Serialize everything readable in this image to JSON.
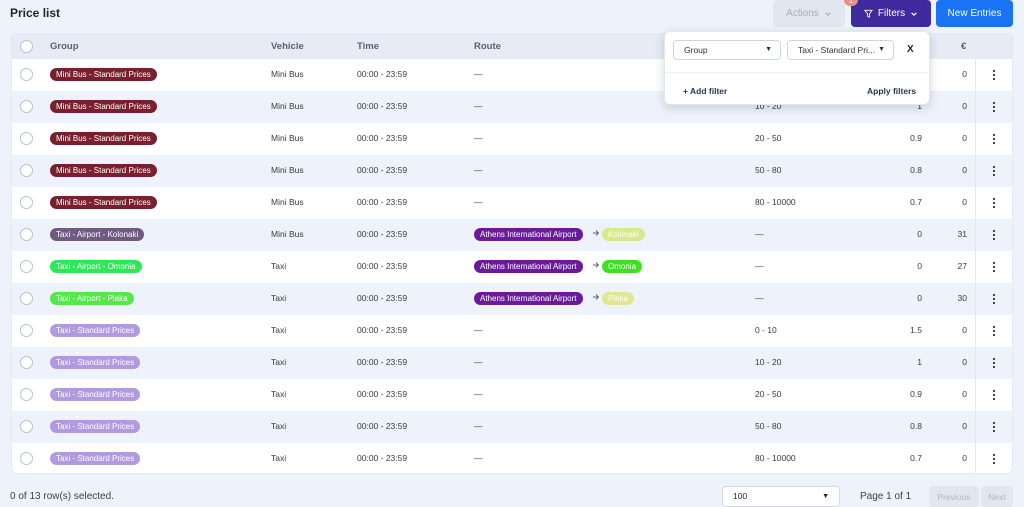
{
  "header": {
    "title": "Price list",
    "actions_label": "Actions",
    "filters_label": "Filters",
    "filter_count": "1",
    "new_entries_label": "New Entries"
  },
  "table": {
    "columns": [
      "Group",
      "Vehicle",
      "Time",
      "Route",
      "€"
    ],
    "rows": [
      {
        "group": "Mini Bus - Standard Prices",
        "group_color": "#7a1f2e",
        "group_text": "#ffffff",
        "vehicle": "Mini Bus",
        "time": "00:00 - 23:59",
        "route": "—",
        "from": "",
        "from_color": "",
        "to": "",
        "to_color": "",
        "to_text": "",
        "range": "",
        "factor": "",
        "price": "0"
      },
      {
        "group": "Mini Bus - Standard Prices",
        "group_color": "#7a1f2e",
        "group_text": "#ffffff",
        "vehicle": "Mini Bus",
        "time": "00:00 - 23:59",
        "route": "—",
        "from": "",
        "from_color": "",
        "to": "",
        "to_color": "",
        "to_text": "",
        "range": "10 - 20",
        "factor": "1",
        "price": "0"
      },
      {
        "group": "Mini Bus - Standard Prices",
        "group_color": "#7a1f2e",
        "group_text": "#ffffff",
        "vehicle": "Mini Bus",
        "time": "00:00 - 23:59",
        "route": "—",
        "from": "",
        "from_color": "",
        "to": "",
        "to_color": "",
        "to_text": "",
        "range": "20 - 50",
        "factor": "0.9",
        "price": "0"
      },
      {
        "group": "Mini Bus - Standard Prices",
        "group_color": "#7a1f2e",
        "group_text": "#ffffff",
        "vehicle": "Mini Bus",
        "time": "00:00 - 23:59",
        "route": "—",
        "from": "",
        "from_color": "",
        "to": "",
        "to_color": "",
        "to_text": "",
        "range": "50 - 80",
        "factor": "0.8",
        "price": "0"
      },
      {
        "group": "Mini Bus - Standard Prices",
        "group_color": "#7a1f2e",
        "group_text": "#ffffff",
        "vehicle": "Mini Bus",
        "time": "00:00 - 23:59",
        "route": "—",
        "from": "",
        "from_color": "",
        "to": "",
        "to_color": "",
        "to_text": "",
        "range": "80 - 10000",
        "factor": "0.7",
        "price": "0"
      },
      {
        "group": "Taxi - Airport - Kolonaki",
        "group_color": "#6f5b80",
        "group_text": "#ffffff",
        "vehicle": "Mini Bus",
        "time": "00:00 - 23:59",
        "route": "",
        "from": "Athens International Airport",
        "from_color": "#6a1b9a",
        "to": "Kolonaki",
        "to_color": "#d8e88a",
        "to_text": "#ffffff",
        "range": "—",
        "factor": "0",
        "price": "31"
      },
      {
        "group": "Taxi - Airport - Omonia",
        "group_color": "#2ee85a",
        "group_text": "#ffffff",
        "vehicle": "Taxi",
        "time": "00:00 - 23:59",
        "route": "",
        "from": "Athens International Airport",
        "from_color": "#6a1b9a",
        "to": "Omonia",
        "to_color": "#3fe020",
        "to_text": "#ffffff",
        "range": "—",
        "factor": "0",
        "price": "27"
      },
      {
        "group": "Taxi - Airport - Plaka",
        "group_color": "#55e84a",
        "group_text": "#ffffff",
        "vehicle": "Taxi",
        "time": "00:00 - 23:59",
        "route": "",
        "from": "Athens International Airport",
        "from_color": "#6a1b9a",
        "to": "Plaka",
        "to_color": "#dfe88e",
        "to_text": "#ffffff",
        "range": "—",
        "factor": "0",
        "price": "30"
      },
      {
        "group": "Taxi - Standard Prices",
        "group_color": "#b19ae0",
        "group_text": "#ffffff",
        "vehicle": "Taxi",
        "time": "00:00 - 23:59",
        "route": "—",
        "from": "",
        "from_color": "",
        "to": "",
        "to_color": "",
        "to_text": "",
        "range": "0 - 10",
        "factor": "1.5",
        "price": "0"
      },
      {
        "group": "Taxi - Standard Prices",
        "group_color": "#b19ae0",
        "group_text": "#ffffff",
        "vehicle": "Taxi",
        "time": "00:00 - 23:59",
        "route": "—",
        "from": "",
        "from_color": "",
        "to": "",
        "to_color": "",
        "to_text": "",
        "range": "10 - 20",
        "factor": "1",
        "price": "0"
      },
      {
        "group": "Taxi - Standard Prices",
        "group_color": "#b19ae0",
        "group_text": "#ffffff",
        "vehicle": "Taxi",
        "time": "00:00 - 23:59",
        "route": "—",
        "from": "",
        "from_color": "",
        "to": "",
        "to_color": "",
        "to_text": "",
        "range": "20 - 50",
        "factor": "0.9",
        "price": "0"
      },
      {
        "group": "Taxi - Standard Prices",
        "group_color": "#b19ae0",
        "group_text": "#ffffff",
        "vehicle": "Taxi",
        "time": "00:00 - 23:59",
        "route": "—",
        "from": "",
        "from_color": "",
        "to": "",
        "to_color": "",
        "to_text": "",
        "range": "50 - 80",
        "factor": "0.8",
        "price": "0"
      },
      {
        "group": "Taxi - Standard Prices",
        "group_color": "#b19ae0",
        "group_text": "#ffffff",
        "vehicle": "Taxi",
        "time": "00:00 - 23:59",
        "route": "—",
        "from": "",
        "from_color": "",
        "to": "",
        "to_color": "",
        "to_text": "",
        "range": "80 - 10000",
        "factor": "0.7",
        "price": "0"
      }
    ]
  },
  "filter_popover": {
    "field_select": "Group",
    "value_select": "Taxi - Standard Pri...",
    "close_label": "X",
    "add_filter_label": "+ Add filter",
    "apply_label": "Apply filters"
  },
  "footer": {
    "selected_text": "0 of 13 row(s) selected.",
    "page_size": "100",
    "page_info": "Page 1 of 1",
    "prev_label": "Previous",
    "next_label": "Next"
  },
  "icons": {
    "filter": "funnel-icon",
    "chevron": "chevron-down-icon",
    "kebab": "more-vertical-icon",
    "arrow": "arrow-right-icon"
  },
  "colors": {
    "filters_button": "#3f2a9e",
    "new_entries_button": "#1a73f5",
    "route_from": "#6a1b9a"
  }
}
